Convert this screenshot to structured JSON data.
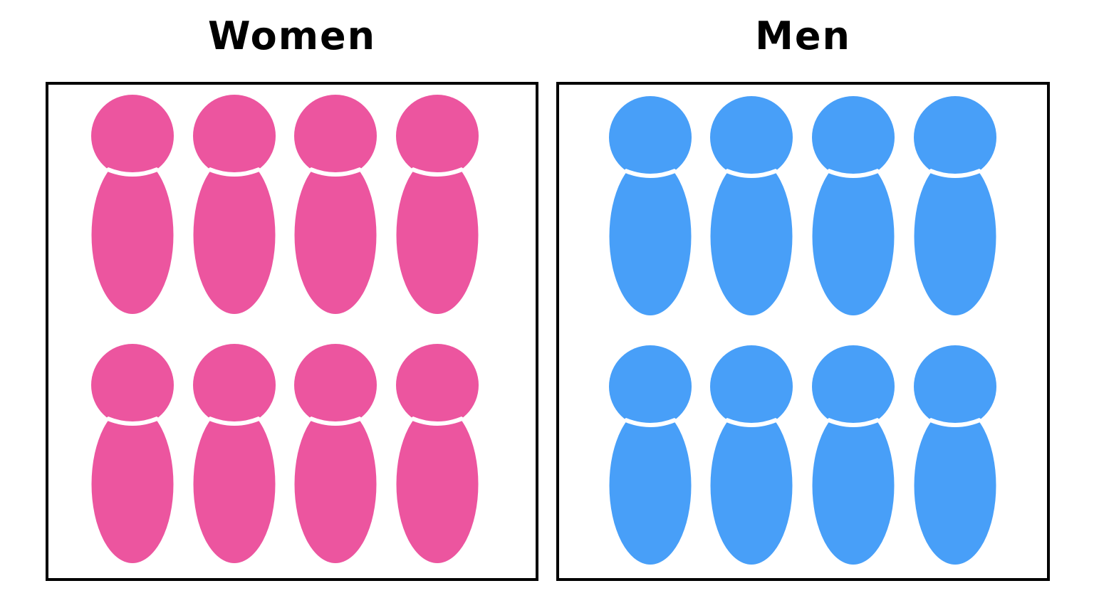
{
  "groups": [
    {
      "id": "women",
      "title": "Women",
      "count": 8,
      "color": "#EC559F",
      "icon": "person-icon"
    },
    {
      "id": "men",
      "title": "Men",
      "count": 8,
      "color": "#489FF8",
      "icon": "person-icon"
    }
  ]
}
